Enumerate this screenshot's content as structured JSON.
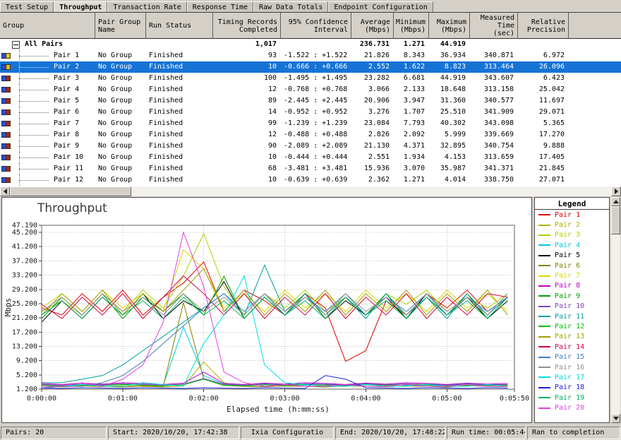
{
  "tabs": [
    {
      "label": "Test Setup",
      "active": false
    },
    {
      "label": "Throughput",
      "active": true
    },
    {
      "label": "Transaction Rate",
      "active": false
    },
    {
      "label": "Response Time",
      "active": false
    },
    {
      "label": "Raw Data Totals",
      "active": false
    },
    {
      "label": "Endpoint Configuration",
      "active": false
    }
  ],
  "table": {
    "columns": [
      {
        "label": "Group",
        "align": "left"
      },
      {
        "label": "Pair Group\nName",
        "align": "left"
      },
      {
        "label": "Run Status",
        "align": "left"
      },
      {
        "label": "Timing Records\nCompleted",
        "align": "right"
      },
      {
        "label": "95% Confidence\nInterval",
        "align": "right"
      },
      {
        "label": "Average\n(Mbps)",
        "align": "right"
      },
      {
        "label": "Minimum\n(Mbps)",
        "align": "right"
      },
      {
        "label": "Maximum\n(Mbps)",
        "align": "right"
      },
      {
        "label": "Measured\nTime (sec)",
        "align": "right"
      },
      {
        "label": "Relative\nPrecision",
        "align": "right"
      }
    ],
    "summary": {
      "label": "All Pairs",
      "records": "1,017",
      "avg": "236.731",
      "min": "1.271",
      "max": "44.919"
    },
    "rows": [
      {
        "name": "Pair 1",
        "group": "No Group",
        "status": "Finished",
        "records": "93",
        "confidence": "-1.522 : +1.522",
        "avg": "21.826",
        "min": "8.343",
        "max": "36.934",
        "time": "340.871",
        "precision": "6.972",
        "selected": false,
        "icon_variant": "blue-yellow"
      },
      {
        "name": "Pair 2",
        "group": "No Group",
        "status": "Finished",
        "records": "10",
        "confidence": "-0.666 : +0.666",
        "avg": "2.552",
        "min": "1.622",
        "max": "8.823",
        "time": "313.464",
        "precision": "26.096",
        "selected": true,
        "icon_variant": "blue-yellow"
      },
      {
        "name": "Pair 3",
        "group": "No Group",
        "status": "Finished",
        "records": "100",
        "confidence": "-1.495 : +1.495",
        "avg": "23.282",
        "min": "6.681",
        "max": "44.919",
        "time": "343.607",
        "precision": "6.423",
        "selected": false,
        "icon_variant": "blue-red"
      },
      {
        "name": "Pair 4",
        "group": "No Group",
        "status": "Finished",
        "records": "12",
        "confidence": "-0.768 : +0.768",
        "avg": "3.066",
        "min": "2.133",
        "max": "18.648",
        "time": "313.158",
        "precision": "25.042",
        "selected": false,
        "icon_variant": "blue-red"
      },
      {
        "name": "Pair 5",
        "group": "No Group",
        "status": "Finished",
        "records": "89",
        "confidence": "-2.445 : +2.445",
        "avg": "20.906",
        "min": "3.947",
        "max": "31.360",
        "time": "340.577",
        "precision": "11.697",
        "selected": false,
        "icon_variant": "blue-red"
      },
      {
        "name": "Pair 6",
        "group": "No Group",
        "status": "Finished",
        "records": "14",
        "confidence": "-0.952 : +0.952",
        "avg": "3.276",
        "min": "1.707",
        "max": "25.510",
        "time": "341.909",
        "precision": "29.071",
        "selected": false,
        "icon_variant": "blue-red"
      },
      {
        "name": "Pair 7",
        "group": "No Group",
        "status": "Finished",
        "records": "99",
        "confidence": "-1.239 : +1.239",
        "avg": "23.084",
        "min": "7.793",
        "max": "40.302",
        "time": "343.098",
        "precision": "5.365",
        "selected": false,
        "icon_variant": "blue-red"
      },
      {
        "name": "Pair 8",
        "group": "No Group",
        "status": "Finished",
        "records": "12",
        "confidence": "-0.488 : +0.488",
        "avg": "2.826",
        "min": "2.092",
        "max": "5.999",
        "time": "339.669",
        "precision": "17.270",
        "selected": false,
        "icon_variant": "blue-red"
      },
      {
        "name": "Pair 9",
        "group": "No Group",
        "status": "Finished",
        "records": "90",
        "confidence": "-2.089 : +2.089",
        "avg": "21.130",
        "min": "4.371",
        "max": "32.895",
        "time": "340.754",
        "precision": "9.888",
        "selected": false,
        "icon_variant": "blue-red"
      },
      {
        "name": "Pair 10",
        "group": "No Group",
        "status": "Finished",
        "records": "10",
        "confidence": "-0.444 : +0.444",
        "avg": "2.551",
        "min": "1.934",
        "max": "4.153",
        "time": "313.659",
        "precision": "17.405",
        "selected": false,
        "icon_variant": "blue-red"
      },
      {
        "name": "Pair 11",
        "group": "No Group",
        "status": "Finished",
        "records": "68",
        "confidence": "-3.481 : +3.481",
        "avg": "15.936",
        "min": "3.070",
        "max": "35.987",
        "time": "341.371",
        "precision": "21.845",
        "selected": false,
        "icon_variant": "blue-red"
      },
      {
        "name": "Pair 12",
        "group": "No Group",
        "status": "Finished",
        "records": "10",
        "confidence": "-0.639 : +0.639",
        "avg": "2.362",
        "min": "1.271",
        "max": "4.014",
        "time": "338.750",
        "precision": "27.071",
        "selected": false,
        "icon_variant": "blue-red"
      }
    ]
  },
  "legend": {
    "title": "Legend"
  },
  "chart_data": {
    "type": "line",
    "title": "Throughput",
    "xlabel": "Elapsed time (h:mm:ss)",
    "ylabel": "Mbps",
    "xlim": [
      0,
      350
    ],
    "ylim": [
      1.2,
      47.19
    ],
    "grid": true,
    "legend_position": "right",
    "y_ticks": [
      {
        "v": 47.19,
        "label": "47.190"
      },
      {
        "v": 45.2,
        "label": "45.200"
      },
      {
        "v": 41.2,
        "label": "41.200"
      },
      {
        "v": 37.2,
        "label": "37.200"
      },
      {
        "v": 33.2,
        "label": "33.200"
      },
      {
        "v": 29.2,
        "label": "29.200"
      },
      {
        "v": 25.2,
        "label": "25.200"
      },
      {
        "v": 21.2,
        "label": "21.200"
      },
      {
        "v": 17.2,
        "label": "17.200"
      },
      {
        "v": 13.2,
        "label": "13.200"
      },
      {
        "v": 9.2,
        "label": "9.200"
      },
      {
        "v": 5.2,
        "label": "5.200"
      },
      {
        "v": 1.2,
        "label": "1.200"
      }
    ],
    "x_ticks": [
      {
        "t": 0,
        "label": "0:00:00"
      },
      {
        "t": 60,
        "label": "0:01:00"
      },
      {
        "t": 120,
        "label": "0:02:00"
      },
      {
        "t": 180,
        "label": "0:03:00"
      },
      {
        "t": 240,
        "label": "0:04:00"
      },
      {
        "t": 300,
        "label": "0:05:00"
      },
      {
        "t": 350,
        "label": "0:05:50"
      }
    ],
    "x": [
      0,
      15,
      30,
      45,
      60,
      75,
      90,
      105,
      120,
      135,
      150,
      165,
      180,
      195,
      210,
      225,
      240,
      255,
      270,
      285,
      300,
      315,
      330,
      345
    ],
    "series": [
      {
        "name": "Pair 1",
        "color": "#e00000",
        "values": [
          24,
          22,
          28,
          23,
          29,
          22,
          27,
          31,
          36.9,
          23,
          29,
          26,
          22,
          28,
          24,
          9,
          12,
          26,
          22,
          28,
          24,
          29,
          23,
          27
        ]
      },
      {
        "name": "Pair 2",
        "color": "#b0b000",
        "values": [
          2,
          1.8,
          2.1,
          1.9,
          2.2,
          2,
          1.8,
          2.1,
          8.8,
          3,
          2,
          1.9,
          2.1,
          2,
          1.8,
          2.2,
          2,
          1.9,
          2.1,
          2,
          1.8,
          2.2,
          2,
          1.9
        ]
      },
      {
        "name": "Pair 3",
        "color": "#a8d400",
        "values": [
          23,
          26,
          22,
          28,
          23,
          29,
          24,
          33,
          44.9,
          30,
          22,
          28,
          24,
          29,
          23,
          27,
          22,
          28,
          25,
          29,
          23,
          27,
          24,
          28
        ]
      },
      {
        "name": "Pair 4",
        "color": "#00c8d8",
        "values": [
          2.5,
          2.3,
          2.6,
          2.4,
          2.7,
          2.5,
          2.3,
          18.6,
          5,
          2.6,
          2.4,
          2.7,
          2.5,
          2.3,
          2.6,
          2.4,
          2.7,
          2.5,
          2.3,
          2.6,
          2.4,
          2.7,
          2.5,
          2.4
        ]
      },
      {
        "name": "Pair 5",
        "color": "#000000",
        "values": [
          20,
          26,
          21,
          27,
          22,
          28,
          21,
          26,
          23,
          31.4,
          21,
          27,
          22,
          28,
          21,
          26,
          22,
          27,
          21,
          28,
          22,
          27,
          21,
          26
        ]
      },
      {
        "name": "Pair 6",
        "color": "#808000",
        "values": [
          2,
          1.9,
          2.2,
          2,
          1.8,
          2.1,
          2,
          25.5,
          4,
          2.2,
          2,
          1.9,
          2.1,
          2,
          1.8,
          2.2,
          2,
          1.9,
          2.1,
          2,
          1.8,
          2.2,
          2,
          1.9
        ]
      },
      {
        "name": "Pair 7",
        "color": "#d8d800",
        "values": [
          24,
          28,
          23,
          29,
          24,
          28,
          23,
          40.3,
          35,
          24,
          28,
          23,
          29,
          24,
          28,
          23,
          29,
          24,
          28,
          23,
          29,
          24,
          28,
          23
        ]
      },
      {
        "name": "Pair 8",
        "color": "#c000c0",
        "values": [
          2.8,
          2.5,
          2.9,
          2.6,
          3,
          2.8,
          2.5,
          2.9,
          6,
          2.8,
          2.5,
          2.9,
          2.6,
          3,
          2.8,
          2.5,
          2.9,
          2.6,
          3,
          2.8,
          2.5,
          2.9,
          2.6,
          2.8
        ]
      },
      {
        "name": "Pair 9",
        "color": "#00a000",
        "values": [
          21,
          27,
          22,
          28,
          21,
          27,
          23,
          28,
          22,
          32.9,
          21,
          27,
          22,
          28,
          21,
          27,
          22,
          28,
          21,
          27,
          22,
          28,
          21,
          27
        ]
      },
      {
        "name": "Pair 10",
        "color": "#8040c0",
        "values": [
          2.5,
          2.3,
          2.6,
          2.4,
          2.7,
          2.5,
          2.3,
          2.6,
          4.2,
          2.5,
          2.3,
          2.6,
          2.4,
          2.7,
          2.5,
          2.3,
          2.6,
          2.4,
          2.7,
          2.5,
          2.3,
          2.6,
          2.4,
          2.5
        ]
      },
      {
        "name": "Pair 11",
        "color": "#00a0a0",
        "values": [
          3,
          3,
          4,
          5,
          8,
          12,
          16,
          20,
          24,
          28,
          22,
          36,
          23,
          28,
          22,
          27,
          21,
          28,
          22,
          27,
          21,
          28,
          22,
          27
        ]
      },
      {
        "name": "Pair 12",
        "color": "#00c000",
        "values": [
          2.3,
          2.1,
          2.4,
          2.2,
          2.5,
          2.3,
          2.1,
          2.4,
          4,
          2.3,
          2.1,
          2.4,
          2.2,
          2.5,
          2.3,
          2.1,
          2.4,
          2.2,
          2.5,
          2.3,
          2.1,
          2.4,
          2.2,
          2.3
        ]
      },
      {
        "name": "Pair 13",
        "color": "#a0a000",
        "values": [
          22,
          28,
          23,
          29,
          22,
          28,
          23,
          29,
          35,
          23,
          29,
          22,
          28,
          23,
          29,
          22,
          28,
          23,
          29,
          22,
          28,
          23,
          29,
          22
        ]
      },
      {
        "name": "Pair 14",
        "color": "#d00040",
        "values": [
          25,
          21,
          27,
          22,
          28,
          21,
          27,
          33,
          28,
          22,
          28,
          21,
          27,
          22,
          28,
          21,
          27,
          22,
          28,
          21,
          27,
          22,
          28,
          27
        ]
      },
      {
        "name": "Pair 15",
        "color": "#4080c0",
        "values": [
          1.5,
          2,
          2,
          3,
          5,
          9,
          14,
          19,
          24,
          28,
          23,
          28,
          22,
          27,
          23,
          28,
          22,
          27,
          23,
          28,
          22,
          27,
          23,
          27
        ]
      },
      {
        "name": "Pair 16",
        "color": "#909090",
        "values": [
          23,
          27,
          22,
          28,
          23,
          27,
          22,
          28,
          23,
          27,
          22,
          28,
          23,
          27,
          22,
          28,
          23,
          27,
          22,
          28,
          23,
          27,
          22,
          28
        ]
      },
      {
        "name": "Pair 17",
        "color": "#00e0e0",
        "values": [
          2,
          2,
          2.5,
          2,
          2,
          3,
          2.5,
          2,
          14,
          22,
          33,
          8,
          3,
          2.5,
          2,
          2,
          2.5,
          2,
          2,
          2.5,
          2,
          2,
          2.5,
          2
        ]
      },
      {
        "name": "Pair 18",
        "color": "#2020e0",
        "values": [
          1.5,
          1.4,
          1.6,
          1.5,
          1.4,
          1.6,
          1.5,
          1.4,
          1.6,
          1.5,
          1.4,
          1.6,
          1.5,
          1.4,
          5,
          4,
          1.6,
          1.5,
          1.4,
          1.6,
          1.5,
          1.4,
          1.6,
          1.5
        ]
      },
      {
        "name": "Pair 19",
        "color": "#00b060",
        "values": [
          22,
          26,
          21,
          27,
          22,
          26,
          21,
          27,
          22,
          26,
          21,
          27,
          22,
          26,
          21,
          27,
          22,
          26,
          21,
          27,
          22,
          26,
          21,
          27
        ]
      },
      {
        "name": "Pair 20",
        "color": "#e040e0",
        "values": [
          2,
          2,
          3,
          2,
          4,
          8,
          20,
          45.2,
          30,
          6,
          3,
          2,
          2.5,
          2,
          2,
          2.5,
          2,
          2,
          2.5,
          2,
          2,
          2.5,
          2,
          2
        ]
      }
    ]
  },
  "statusbar": {
    "panels": [
      {
        "name": "pairs-count",
        "text": "Pairs: 20"
      },
      {
        "name": "start-time",
        "text": "Start: 2020/10/20, 17:42:38"
      },
      {
        "name": "config-name",
        "text": "Ixia Configuratio"
      },
      {
        "name": "end-time",
        "text": "End: 2020/10/20, 17:48:22"
      },
      {
        "name": "run-time",
        "text": "Run time: 00:05:44"
      },
      {
        "name": "completion-status",
        "text": "Ran to completion"
      }
    ]
  }
}
